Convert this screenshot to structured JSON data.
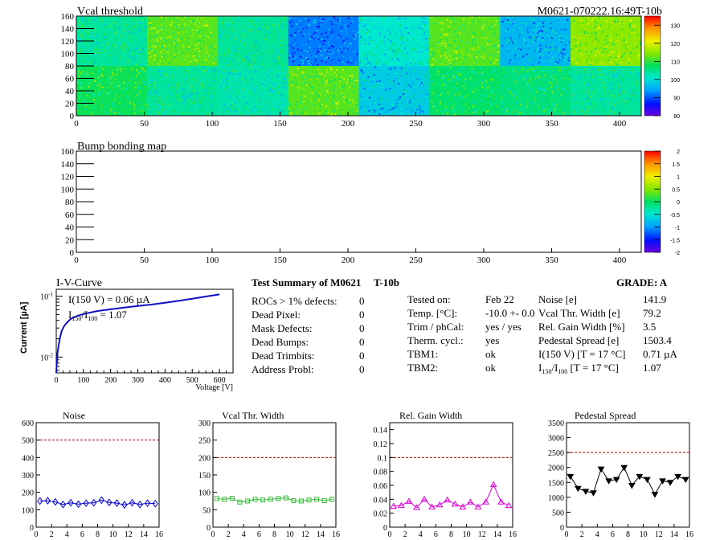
{
  "header": {
    "left_title": "Vcal threshold",
    "right_title": "M0621-070222.16:49T-10b"
  },
  "heatmap": {
    "x_ticks": [
      "0",
      "50",
      "100",
      "150",
      "200",
      "250",
      "300",
      "350",
      "400"
    ],
    "y_ticks": [
      "0",
      "20",
      "40",
      "60",
      "80",
      "100",
      "120",
      "140",
      "160"
    ],
    "colorbar_ticks": [
      "80",
      "90",
      "100",
      "110",
      "120",
      "130"
    ],
    "roc_columns": 8,
    "roc_rows": 2,
    "roc_means": [
      [
        104,
        112,
        104,
        92,
        101,
        112,
        96,
        115
      ],
      [
        108,
        104,
        103,
        112,
        98,
        107,
        106,
        104
      ]
    ]
  },
  "bump_map": {
    "title": "Bump bonding map",
    "x_ticks": [
      "0",
      "50",
      "100",
      "150",
      "200",
      "250",
      "300",
      "350",
      "400"
    ],
    "y_ticks": [
      "0",
      "20",
      "40",
      "60",
      "80",
      "100",
      "120",
      "140",
      "160"
    ],
    "colorbar_ticks": [
      "2",
      "1.5",
      "1",
      "0.5",
      "0",
      "-0.5",
      "-1",
      "-1.5",
      "-2"
    ]
  },
  "iv": {
    "title": "I-V-Curve",
    "ylabel": "Current [µA]",
    "xlabel": "Voltage [V]",
    "x_ticks": [
      "0",
      "100",
      "200",
      "300",
      "400",
      "500",
      "600"
    ],
    "annot1": "I(150 V) = 0.06 µA",
    "annot2_prefix": "I",
    "annot2_sub1": "150",
    "annot2_mid": "/I",
    "annot2_sub2": "100",
    "annot2_suffix": " = 1.07"
  },
  "summary": {
    "title": "Test Summary of M0621",
    "module": "T-10b",
    "grade": "GRADE:  A",
    "left": [
      {
        "label": "ROCs > 1% defects:",
        "value": "0"
      },
      {
        "label": "Dead Pixel:",
        "value": "0"
      },
      {
        "label": "Mask Defects:",
        "value": "0"
      },
      {
        "label": "Dead Bumps:",
        "value": "0"
      },
      {
        "label": "Dead Trimbits:",
        "value": "0"
      },
      {
        "label": "Address Probl:",
        "value": "0"
      }
    ],
    "middle": [
      {
        "label": "Tested on:",
        "value": "Feb 22"
      },
      {
        "label": "Temp. [°C]:",
        "value": "-10.0 +- 0.0"
      },
      {
        "label": "Trim / phCal:",
        "value": "yes / yes"
      },
      {
        "label": "Therm. cycl.:",
        "value": "yes"
      },
      {
        "label": "TBM1:",
        "value": "ok"
      },
      {
        "label": "TBM2:",
        "value": "ok"
      }
    ],
    "right": [
      {
        "label": "Noise [e]",
        "value": "141.9"
      },
      {
        "label": "Vcal Thr. Width [e]",
        "value": "79.2"
      },
      {
        "label": "Rel. Gain Width [%]",
        "value": "3.5"
      },
      {
        "label": "Pedestal Spread [e]",
        "value": "1503.4"
      },
      {
        "label": "I(150 V) [T = 17 °C]",
        "value": "0.71 µA"
      }
    ],
    "ratio_label_prefix": "I",
    "ratio_label_sub1": "150",
    "ratio_label_mid": "/I",
    "ratio_label_sub2": "100",
    "ratio_label_suffix": "  [T = 17 °C]",
    "ratio_value": "1.07"
  },
  "chart_data": [
    {
      "type": "heatmap",
      "title": "Vcal threshold",
      "xlim": [
        0,
        416
      ],
      "ylim": [
        0,
        160
      ],
      "zlim": [
        80,
        135
      ],
      "roc_means": [
        [
          104,
          112,
          104,
          92,
          101,
          112,
          96,
          115
        ],
        [
          108,
          104,
          103,
          112,
          98,
          107,
          106,
          104
        ]
      ]
    },
    {
      "type": "heatmap",
      "title": "Bump bonding map",
      "xlim": [
        0,
        416
      ],
      "ylim": [
        0,
        160
      ],
      "zlim": [
        -2,
        2
      ]
    },
    {
      "type": "line",
      "title": "I-V-Curve",
      "xlabel": "Voltage [V]",
      "ylabel": "Current [µA]",
      "xlim": [
        0,
        650
      ],
      "ylim": [
        0.0055,
        0.13
      ],
      "yscale": "log",
      "x": [
        0,
        2,
        5,
        10,
        15,
        20,
        30,
        40,
        50,
        60,
        80,
        100,
        150,
        200,
        250,
        300,
        350,
        400,
        450,
        500,
        550,
        600
      ],
      "y": [
        0.0055,
        0.008,
        0.012,
        0.017,
        0.022,
        0.027,
        0.033,
        0.037,
        0.041,
        0.044,
        0.048,
        0.051,
        0.057,
        0.061,
        0.065,
        0.069,
        0.073,
        0.078,
        0.084,
        0.091,
        0.099,
        0.107
      ]
    },
    {
      "type": "line",
      "title": "Noise",
      "xlim": [
        0,
        16
      ],
      "ylim": [
        0,
        600
      ],
      "x_ticks": [
        "0",
        "2",
        "4",
        "6",
        "8",
        "10",
        "12",
        "14",
        "16"
      ],
      "y_ticks": [
        "0",
        "100",
        "200",
        "300",
        "400",
        "500",
        "600"
      ],
      "threshold": 500,
      "color": "#0000dd",
      "marker": "diamond",
      "x": [
        0.5,
        1.5,
        2.5,
        3.5,
        4.5,
        5.5,
        6.5,
        7.5,
        8.5,
        9.5,
        10.5,
        11.5,
        12.5,
        13.5,
        14.5,
        15.5
      ],
      "y": [
        150,
        152,
        145,
        130,
        140,
        132,
        138,
        140,
        155,
        142,
        138,
        128,
        140,
        130,
        138,
        135
      ]
    },
    {
      "type": "line",
      "title": "Vcal Thr. Width",
      "xlim": [
        0,
        16
      ],
      "ylim": [
        0,
        300
      ],
      "x_ticks": [
        "0",
        "2",
        "4",
        "6",
        "8",
        "10",
        "12",
        "14",
        "16"
      ],
      "y_ticks": [
        "0",
        "50",
        "100",
        "150",
        "200",
        "250",
        "300"
      ],
      "threshold": 200,
      "color": "#33bb33",
      "marker": "square",
      "x": [
        0.5,
        1.5,
        2.5,
        3.5,
        4.5,
        5.5,
        6.5,
        7.5,
        8.5,
        9.5,
        10.5,
        11.5,
        12.5,
        13.5,
        14.5,
        15.5
      ],
      "y": [
        82,
        80,
        83,
        72,
        75,
        80,
        78,
        80,
        82,
        84,
        76,
        75,
        78,
        80,
        76,
        80
      ]
    },
    {
      "type": "line",
      "title": "Rel. Gain Width",
      "xlim": [
        0,
        16
      ],
      "ylim": [
        0,
        0.15
      ],
      "x_ticks": [
        "0",
        "2",
        "4",
        "6",
        "8",
        "10",
        "12",
        "14",
        "16"
      ],
      "y_ticks": [
        "0",
        "0.02",
        "0.04",
        "0.06",
        "0.08",
        "0.1",
        "0.12",
        "0.14"
      ],
      "threshold": 0.1,
      "color": "#dd00dd",
      "marker": "triangle",
      "x": [
        0.5,
        1.5,
        2.5,
        3.5,
        4.5,
        5.5,
        6.5,
        7.5,
        8.5,
        9.5,
        10.5,
        11.5,
        12.5,
        13.5,
        14.5,
        15.5
      ],
      "y": [
        0.03,
        0.031,
        0.037,
        0.028,
        0.04,
        0.029,
        0.032,
        0.039,
        0.033,
        0.029,
        0.036,
        0.029,
        0.036,
        0.061,
        0.036,
        0.031
      ]
    },
    {
      "type": "line",
      "title": "Pedestal Spread",
      "xlim": [
        0,
        16
      ],
      "ylim": [
        0,
        3500
      ],
      "x_ticks": [
        "0",
        "2",
        "4",
        "6",
        "8",
        "10",
        "12",
        "14",
        "16"
      ],
      "y_ticks": [
        "0",
        "500",
        "1000",
        "1500",
        "2000",
        "2500",
        "3000",
        "3500"
      ],
      "threshold": 2500,
      "color": "#000000",
      "marker": "triangle-down",
      "x": [
        0.5,
        1.5,
        2.5,
        3.5,
        4.5,
        5.5,
        6.5,
        7.5,
        8.5,
        9.5,
        10.5,
        11.5,
        12.5,
        13.5,
        14.5,
        15.5
      ],
      "y": [
        1700,
        1300,
        1200,
        1150,
        1950,
        1550,
        1600,
        2000,
        1400,
        1700,
        1600,
        1100,
        1550,
        1500,
        1700,
        1600
      ]
    }
  ]
}
